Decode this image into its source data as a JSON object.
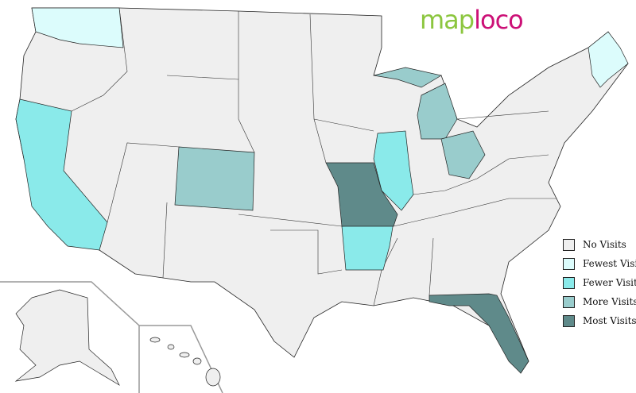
{
  "logo": {
    "part1": "map",
    "part2": "loco"
  },
  "colors": {
    "no_visits": "#efefef",
    "fewest": "#dcfcfc",
    "fewer": "#8aeaea",
    "more": "#99cccc",
    "most": "#5f8a8a"
  },
  "legend": [
    {
      "label": "No Visits",
      "color": "#efefef"
    },
    {
      "label": "Fewest Visits",
      "color": "#dcfcfc"
    },
    {
      "label": "Fewer Visits",
      "color": "#8aeaea"
    },
    {
      "label": "More Visits",
      "color": "#99cccc"
    },
    {
      "label": "Most Visits",
      "color": "#5f8a8a"
    }
  ],
  "states": [
    {
      "name": "Washington",
      "level": "fewest"
    },
    {
      "name": "Maine",
      "level": "fewest"
    },
    {
      "name": "California",
      "level": "fewer"
    },
    {
      "name": "Illinois",
      "level": "fewer"
    },
    {
      "name": "Arkansas",
      "level": "fewer"
    },
    {
      "name": "Colorado",
      "level": "more"
    },
    {
      "name": "Michigan",
      "level": "more"
    },
    {
      "name": "Ohio",
      "level": "more"
    },
    {
      "name": "Missouri",
      "level": "most"
    },
    {
      "name": "Florida",
      "level": "most"
    }
  ]
}
